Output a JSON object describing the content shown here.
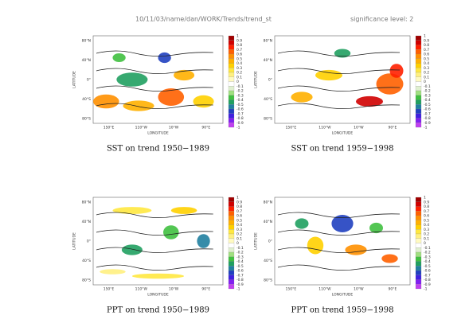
{
  "header": {
    "path": "10/11/03/name/dan/WORK/Trends/trend_st",
    "significance": "significance level: 2"
  },
  "colorbar": [
    "1",
    "0.9",
    "0.8",
    "0.7",
    "0.6",
    "0.5",
    "0.4",
    "0.3",
    "0.2",
    "0.1",
    "0",
    "-0.1",
    "-0.2",
    "-0.3",
    "-0.4",
    "-0.5",
    "-0.6",
    "-0.7",
    "-0.8",
    "-0.9",
    "-1"
  ],
  "panels": [
    {
      "title": "SST on trend 1950−1989",
      "y_label": "LATITUDE",
      "x_label": "LONGITUDE",
      "lat_ticks": [
        "80°N",
        "40°N",
        "0°",
        "40°S",
        "80°S"
      ],
      "lon_ticks": [
        "150°E",
        "110°W",
        "10°W",
        "90°E"
      ]
    },
    {
      "title": "SST on trend 1959−1998",
      "y_label": "LATITUDE",
      "x_label": "LONGITUDE",
      "lat_ticks": [
        "80°N",
        "40°N",
        "0°",
        "40°S",
        "80°S"
      ],
      "lon_ticks": [
        "150°E",
        "110°W",
        "10°W",
        "90°E"
      ]
    },
    {
      "title": "PPT on trend 1950−1989",
      "y_label": "LATITUDE",
      "x_label": "LONGITUDE",
      "lat_ticks": [
        "80°N",
        "40°N",
        "0°",
        "40°S",
        "80°S"
      ],
      "lon_ticks": [
        "150°E",
        "110°W",
        "10°W",
        "90°E"
      ]
    },
    {
      "title": "PPT on trend 1959−1998",
      "y_label": "LATITUDE",
      "x_label": "LONGITUDE",
      "lat_ticks": [
        "80°N",
        "40°N",
        "0°",
        "40°S",
        "80°S"
      ],
      "lon_ticks": [
        "150°E",
        "110°W",
        "10°W",
        "90°E"
      ]
    }
  ]
}
